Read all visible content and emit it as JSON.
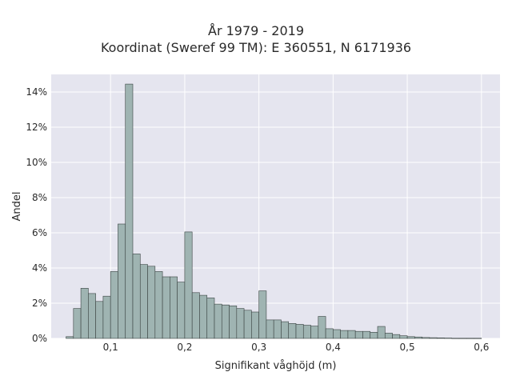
{
  "chart_data": {
    "type": "bar",
    "title": "År 1979 - 2019",
    "subtitle": "Koordinat (Sweref 99 TM): E 360551, N 6171936",
    "xlabel": "Signifikant våghöjd (m)",
    "ylabel": "Andel",
    "xlim": [
      0.02,
      0.625
    ],
    "ylim": [
      0,
      0.15
    ],
    "x_ticks": [
      0.1,
      0.2,
      0.3,
      0.4,
      0.5,
      0.6
    ],
    "x_tick_labels": [
      "0,1",
      "0,2",
      "0,3",
      "0,4",
      "0,5",
      "0,6"
    ],
    "y_ticks": [
      0,
      0.02,
      0.04,
      0.06,
      0.08,
      0.1,
      0.12,
      0.14
    ],
    "y_tick_labels": [
      "0%",
      "2%",
      "4%",
      "6%",
      "8%",
      "10%",
      "12%",
      "14%"
    ],
    "grid": true,
    "bin_start": 0.04,
    "bin_width": 0.01,
    "values": [
      0.001,
      0.017,
      0.0285,
      0.0255,
      0.021,
      0.024,
      0.038,
      0.065,
      0.1445,
      0.048,
      0.042,
      0.041,
      0.038,
      0.035,
      0.035,
      0.032,
      0.0605,
      0.026,
      0.0245,
      0.023,
      0.0195,
      0.019,
      0.0185,
      0.017,
      0.016,
      0.015,
      0.027,
      0.0105,
      0.0105,
      0.0095,
      0.0085,
      0.008,
      0.0075,
      0.007,
      0.0125,
      0.0055,
      0.005,
      0.0045,
      0.0045,
      0.004,
      0.004,
      0.0035,
      0.0068,
      0.003,
      0.0022,
      0.0015,
      0.001,
      0.0008,
      0.0005,
      0.0004,
      0.0003,
      0.0002,
      0.0001,
      0.0001,
      0.0001,
      0.0001
    ],
    "colors": {
      "bar": "#9fb4b2",
      "bar_edge": "#3b4443",
      "plot_bg": "#e5e5ef",
      "grid": "#ffffff"
    }
  }
}
